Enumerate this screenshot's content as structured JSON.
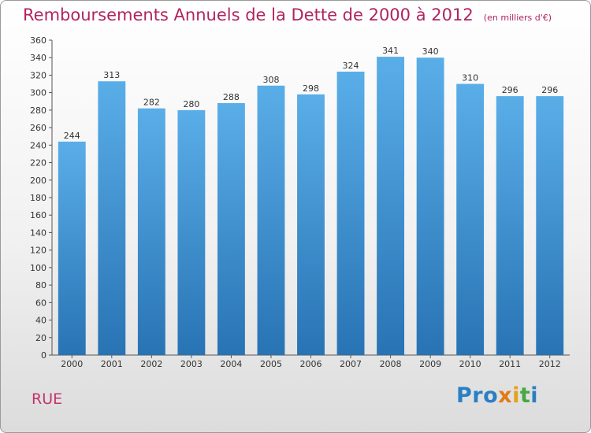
{
  "title": "Remboursements Annuels de la Dette de 2000 à 2012",
  "unit": "(en milliers d'€)",
  "commune": "RUE",
  "logo": {
    "p1": "Pro",
    "p2": "x",
    "p3": "i",
    "p4": "t",
    "p5": "i"
  },
  "colors": {
    "bar_top": "#5aaee8",
    "bar_bottom": "#2873b4",
    "title": "#b0245f"
  },
  "chart_data": {
    "type": "bar",
    "categories": [
      "2000",
      "2001",
      "2002",
      "2003",
      "2004",
      "2005",
      "2006",
      "2007",
      "2008",
      "2009",
      "2010",
      "2011",
      "2012"
    ],
    "values": [
      244,
      313,
      282,
      280,
      288,
      308,
      298,
      324,
      341,
      340,
      310,
      296,
      296
    ],
    "ylim": [
      0,
      360
    ],
    "ytick_step": 20,
    "grid": false,
    "legend": "none",
    "xlabel": "",
    "ylabel": ""
  }
}
